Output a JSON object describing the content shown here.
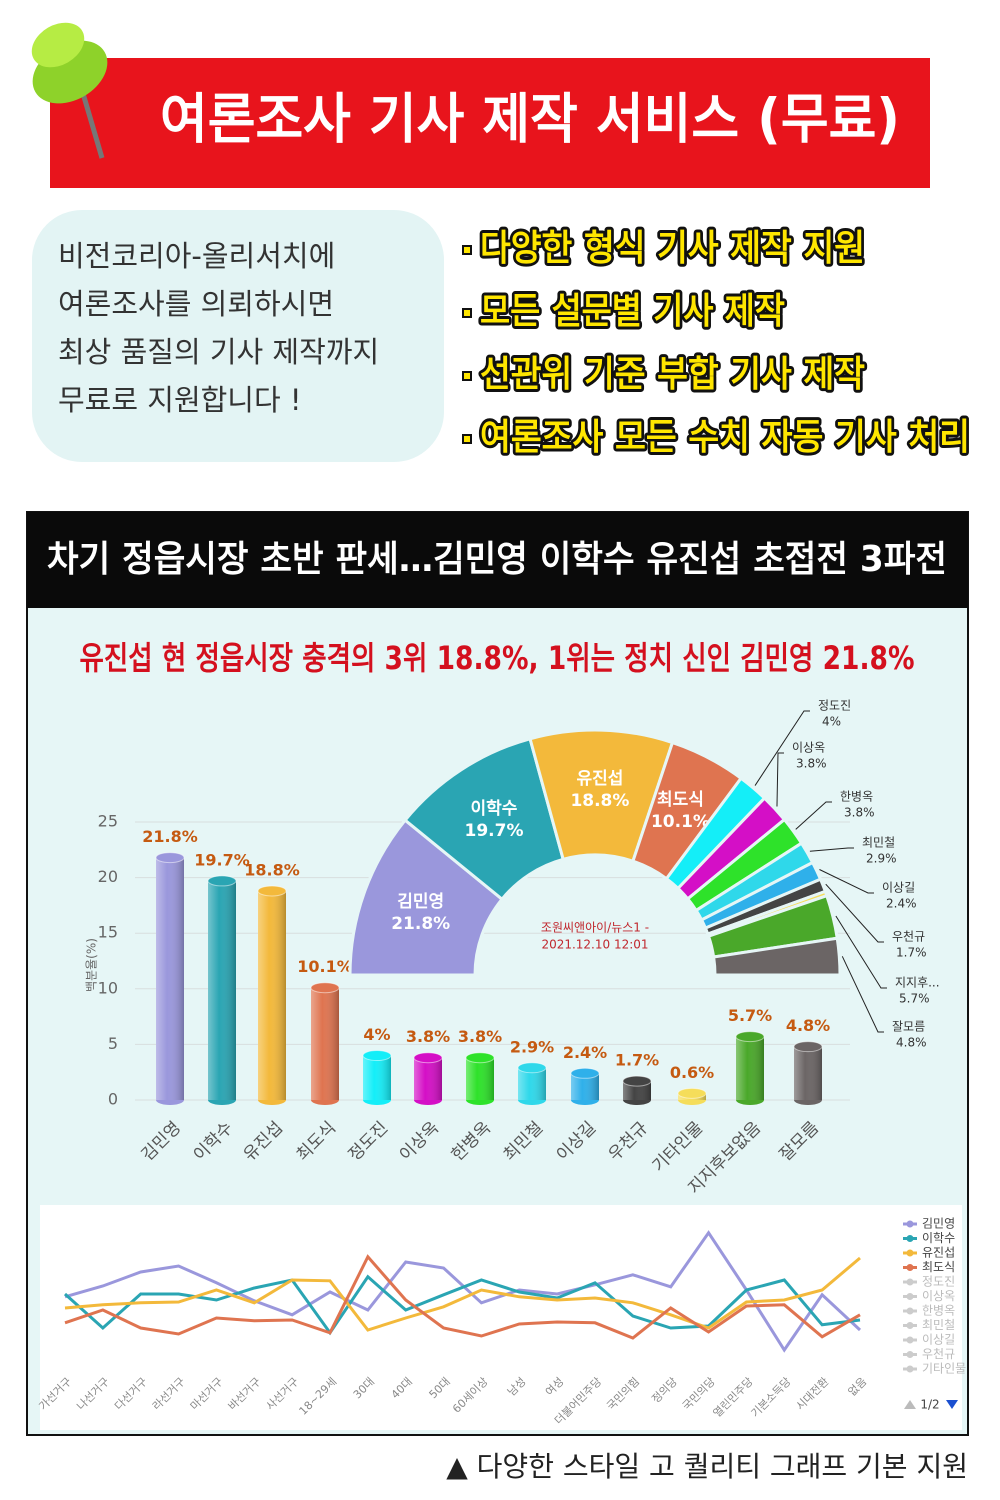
{
  "header": {
    "title": "여론조사 기사 제작 서비스 (무료)"
  },
  "intro": {
    "lines": [
      "비전코리아-올리서치에",
      "여론조사를 의뢰하시면",
      "최상 품질의 기사 제작까지",
      "무료로 지원합니다 !"
    ]
  },
  "bullets": [
    "다양한 형식 기사 제작 지원",
    "모든 설문별 기사 제작",
    "선관위 기준 부합 기사 제작",
    "여론조사 모든 수치 자동 기사 처리"
  ],
  "article": {
    "headline": "차기 정읍시장 초반 판세…김민영 이학수 유진섭 초접전 3파전",
    "subheadline": "유진섭 현 정읍시장 충격의 3위 18.8%, 1위는 정치 신인 김민영 21.8%"
  },
  "chart_data": [
    {
      "type": "bar",
      "y_label": "백분율(%)",
      "ylim": [
        0,
        25
      ],
      "yticks": [
        0,
        5,
        10,
        15,
        20,
        25
      ],
      "grid": true,
      "categories": [
        "김민영",
        "이학수",
        "유진섭",
        "최도식",
        "정도진",
        "이상옥",
        "한병옥",
        "최민철",
        "이상길",
        "우천규",
        "기타인물",
        "지지후보없음",
        "잘모름"
      ],
      "values": [
        21.8,
        19.7,
        18.8,
        10.1,
        4,
        3.8,
        3.8,
        2.9,
        2.4,
        1.7,
        0.6,
        5.7,
        4.8
      ],
      "value_labels": [
        "21.8%",
        "19.7%",
        "18.8%",
        "10.1%",
        "4%",
        "3.8%",
        "3.8%",
        "2.9%",
        "2.4%",
        "1.7%",
        "0.6%",
        "5.7%",
        "4.8%"
      ],
      "colors": [
        "#9a97dc",
        "#2aa5b3",
        "#f3b93b",
        "#df7450",
        "#14eef8",
        "#d40fc6",
        "#2ee22a",
        "#2fd8ea",
        "#2fb0ea",
        "#444444",
        "#f5dd5a",
        "#4aa82a",
        "#6b6565"
      ]
    },
    {
      "type": "pie",
      "annotation": [
        "조원씨앤아이/뉴스1 -",
        "2021.12.10 12:01"
      ],
      "categories": [
        "김민영",
        "이학수",
        "유진섭",
        "최도식",
        "정도진",
        "이상옥",
        "한병옥",
        "최민철",
        "이상길",
        "우천규",
        null,
        "지지후...",
        "잘모름"
      ],
      "values": [
        21.8,
        19.7,
        18.8,
        10.1,
        4,
        3.8,
        3.8,
        2.9,
        2.4,
        1.7,
        0.6,
        5.7,
        4.8
      ],
      "value_labels": [
        "21.8%",
        "19.7%",
        "18.8%",
        "10.1%",
        "4%",
        "3.8%",
        "3.8%",
        "2.9%",
        "2.4%",
        "1.7%",
        "0.6%",
        "5.7%",
        "4.8%"
      ],
      "colors": [
        "#9a97dc",
        "#2aa5b3",
        "#f3b93b",
        "#df7450",
        "#14eef8",
        "#d40fc6",
        "#2ee22a",
        "#2fd8ea",
        "#2fb0ea",
        "#444444",
        "#f5dd5a",
        "#4aa82a",
        "#6b6565"
      ]
    },
    {
      "type": "line",
      "ylim": [
        0,
        35
      ],
      "categories": [
        "가선거구",
        "나선거구",
        "다선거구",
        "라선거구",
        "마선거구",
        "바선거구",
        "사선거구",
        "18~29세",
        "30대",
        "40대",
        "50대",
        "60세이상",
        "남성",
        "여성",
        "더불어민주당",
        "국민의힘",
        "정의당",
        "국민의당",
        "열린민주당",
        "기본소득당",
        "시대전환",
        "없음"
      ],
      "series": [
        {
          "name": "김민영",
          "color": "#9a97dc",
          "values": [
            15.8,
            18.5,
            22,
            23.5,
            19.3,
            14.8,
            11.3,
            17,
            12.5,
            24.5,
            23,
            14.3,
            17.5,
            16.5,
            18.8,
            21.3,
            18.3,
            31.8,
            17.5,
            2.5,
            16.3,
            7.5
          ]
        },
        {
          "name": "이학수",
          "color": "#2aa5b3",
          "values": [
            16.5,
            8,
            16.5,
            16.5,
            15,
            18,
            20,
            6.8,
            20.8,
            12.5,
            16.3,
            20,
            17,
            15.5,
            19.3,
            11,
            8,
            8.5,
            17.5,
            20,
            8.8,
            10
          ]
        },
        {
          "name": "유진섭",
          "color": "#f3b93b",
          "values": [
            13,
            13.8,
            14.3,
            14.5,
            17.5,
            14.3,
            20,
            19.8,
            7.5,
            10.5,
            13.3,
            17.5,
            15.8,
            15,
            15.5,
            14.3,
            11.3,
            8,
            14.5,
            15,
            17.5,
            25.5
          ]
        },
        {
          "name": "최도식",
          "color": "#df7450",
          "values": [
            9.3,
            12.5,
            8,
            6.5,
            10.5,
            9.8,
            10,
            6.8,
            25.8,
            15,
            8,
            6,
            9,
            9.5,
            9.3,
            5.5,
            13,
            7,
            13.5,
            13.8,
            5.8,
            11.3
          ]
        }
      ],
      "legend_hidden": [
        "정도진",
        "이상옥",
        "한병옥",
        "최민철",
        "이상길",
        "우천규",
        "기타인물"
      ],
      "legend_page": "1/2"
    }
  ],
  "footer": {
    "caption": "▲ 다양한 스타일  고 퀄리티 그래프 기본 지원"
  }
}
